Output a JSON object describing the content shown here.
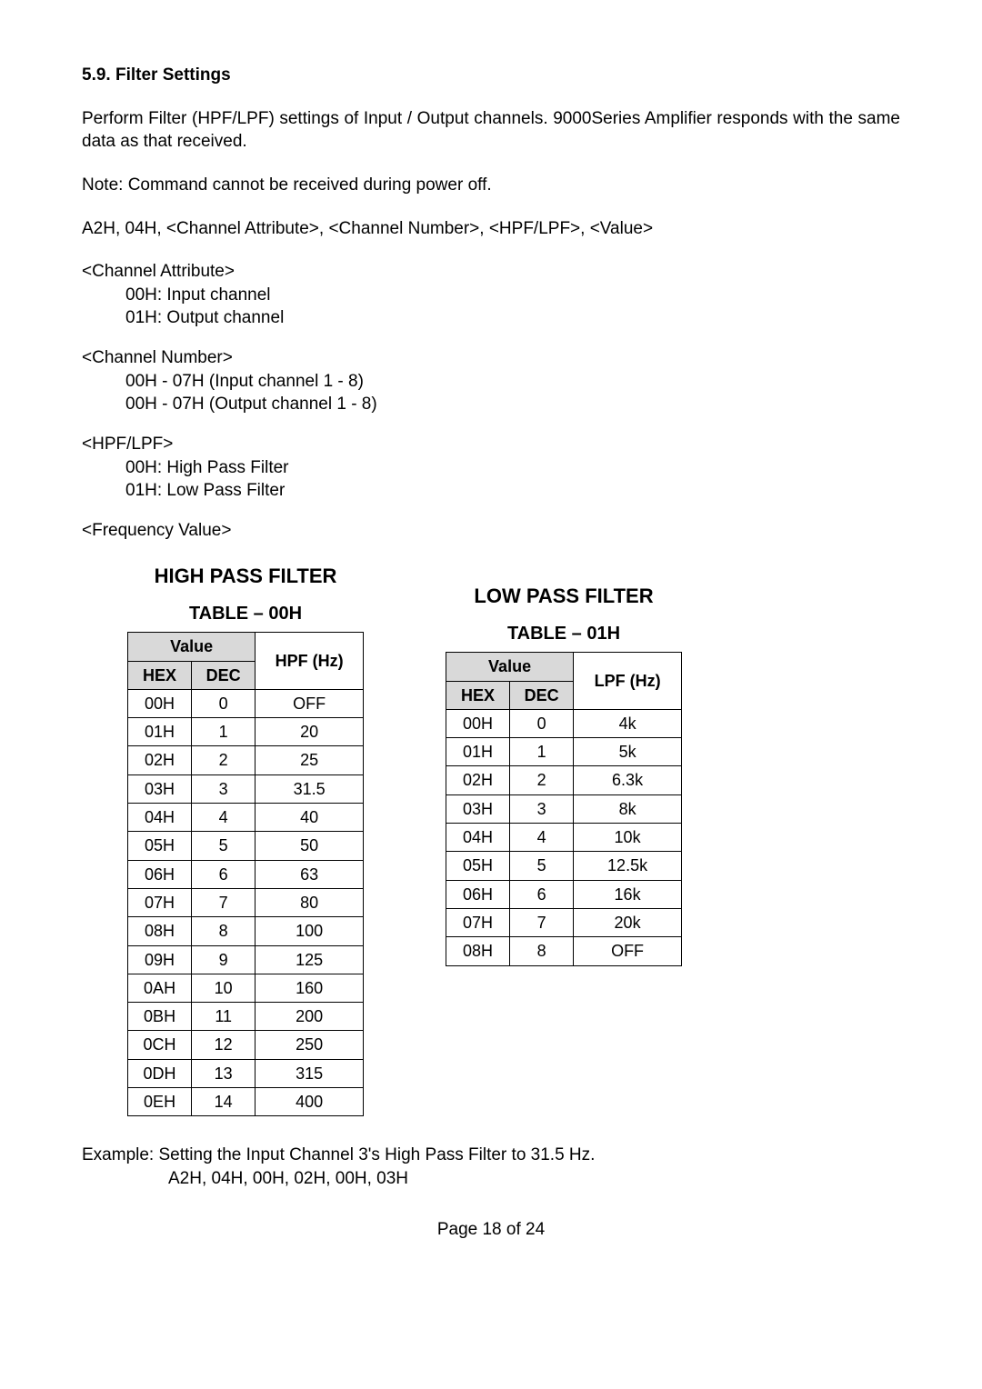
{
  "heading": "5.9. Filter Settings",
  "para1": "Perform Filter (HPF/LPF) settings of Input / Output channels. 9000Series Amplifier responds with the same data as that received.",
  "note": "Note: Command cannot be received during power off.",
  "cmdline": "A2H, 04H, <Channel Attribute>, <Channel Number>, <HPF/LPF>, <Value>",
  "chanAttr": {
    "title": "<Channel Attribute>",
    "l1": "00H: Input channel",
    "l2": "01H: Output channel"
  },
  "chanNum": {
    "title": "<Channel Number>",
    "l1": "00H - 07H (Input channel 1 - 8)",
    "l2": "00H - 07H (Output channel 1 - 8)"
  },
  "hpflpf": {
    "title": "<HPF/LPF>",
    "l1": "00H: High Pass Filter",
    "l2": "01H: Low Pass Filter"
  },
  "freqVal": "<Frequency Value>",
  "hpf": {
    "title": "HIGH PASS FILTER",
    "tableLabel": "TABLE – 00H",
    "headers": {
      "value": "Value",
      "hex": "HEX",
      "dec": "DEC",
      "hz": "HPF (Hz)"
    },
    "rows": [
      {
        "hex": "00H",
        "dec": "0",
        "hz": "OFF"
      },
      {
        "hex": "01H",
        "dec": "1",
        "hz": "20"
      },
      {
        "hex": "02H",
        "dec": "2",
        "hz": "25"
      },
      {
        "hex": "03H",
        "dec": "3",
        "hz": "31.5"
      },
      {
        "hex": "04H",
        "dec": "4",
        "hz": "40"
      },
      {
        "hex": "05H",
        "dec": "5",
        "hz": "50"
      },
      {
        "hex": "06H",
        "dec": "6",
        "hz": "63"
      },
      {
        "hex": "07H",
        "dec": "7",
        "hz": "80"
      },
      {
        "hex": "08H",
        "dec": "8",
        "hz": "100"
      },
      {
        "hex": "09H",
        "dec": "9",
        "hz": "125"
      },
      {
        "hex": "0AH",
        "dec": "10",
        "hz": "160"
      },
      {
        "hex": "0BH",
        "dec": "11",
        "hz": "200"
      },
      {
        "hex": "0CH",
        "dec": "12",
        "hz": "250"
      },
      {
        "hex": "0DH",
        "dec": "13",
        "hz": "315"
      },
      {
        "hex": "0EH",
        "dec": "14",
        "hz": "400"
      }
    ]
  },
  "lpf": {
    "title": "LOW PASS FILTER",
    "tableLabel": "TABLE – 01H",
    "headers": {
      "value": "Value",
      "hex": "HEX",
      "dec": "DEC",
      "hz": "LPF (Hz)"
    },
    "rows": [
      {
        "hex": "00H",
        "dec": "0",
        "hz": "4k"
      },
      {
        "hex": "01H",
        "dec": "1",
        "hz": "5k"
      },
      {
        "hex": "02H",
        "dec": "2",
        "hz": "6.3k"
      },
      {
        "hex": "03H",
        "dec": "3",
        "hz": "8k"
      },
      {
        "hex": "04H",
        "dec": "4",
        "hz": "10k"
      },
      {
        "hex": "05H",
        "dec": "5",
        "hz": "12.5k"
      },
      {
        "hex": "06H",
        "dec": "6",
        "hz": "16k"
      },
      {
        "hex": "07H",
        "dec": "7",
        "hz": "20k"
      },
      {
        "hex": "08H",
        "dec": "8",
        "hz": "OFF"
      }
    ]
  },
  "example": {
    "l1": "Example: Setting the Input Channel 3's High Pass Filter to 31.5 Hz.",
    "l2": "A2H, 04H, 00H, 02H, 00H, 03H"
  },
  "footer": "Page 18 of 24"
}
